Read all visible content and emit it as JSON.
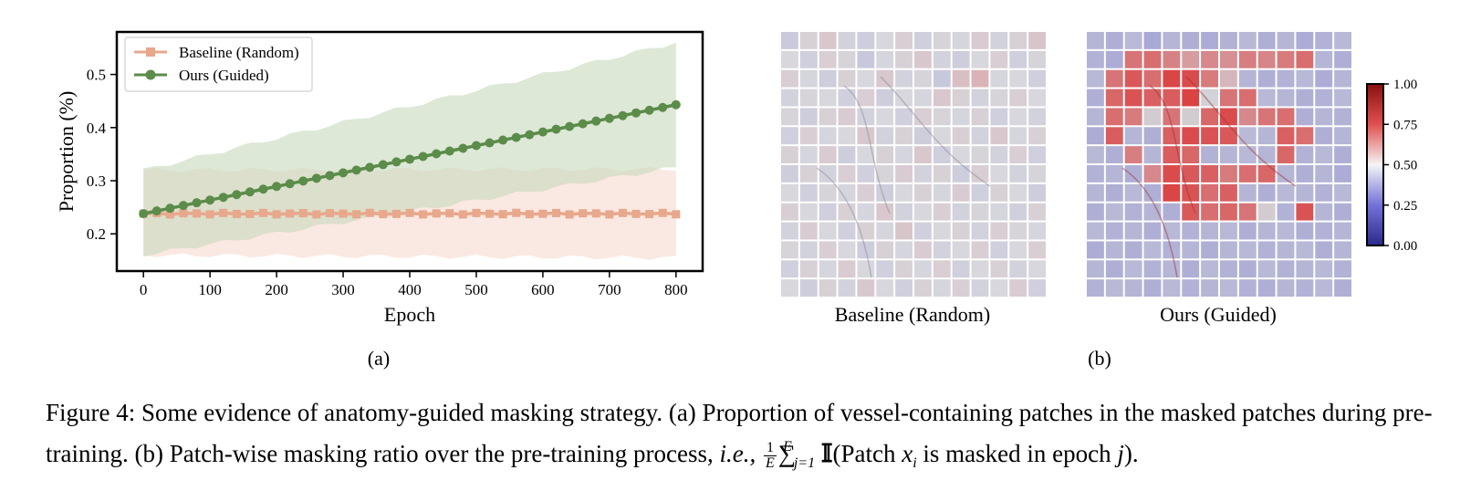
{
  "chart_data": [
    {
      "type": "line",
      "title": "",
      "xlabel": "Epoch",
      "ylabel": "Proportion (%)",
      "xlim": [
        -40,
        840
      ],
      "ylim": [
        0.13,
        0.58
      ],
      "xticks": [
        0,
        100,
        200,
        300,
        400,
        500,
        600,
        700,
        800
      ],
      "yticks": [
        0.2,
        0.3,
        0.4,
        0.5
      ],
      "legend_placement": "top-left",
      "grid": false,
      "panel_label": "(a)",
      "series": [
        {
          "name": "Baseline (Random)",
          "color": "#e8a88c",
          "marker": "square",
          "x_start": 0,
          "x_step": 20,
          "x_end": 800,
          "mean_start": 0.238,
          "mean_end": 0.238,
          "band_lower_start": 0.16,
          "band_lower_end": 0.155,
          "band_upper_start": 0.32,
          "band_upper_end": 0.322
        },
        {
          "name": "Ours (Guided)",
          "color": "#5b8c4a",
          "marker": "circle",
          "x_start": 0,
          "x_step": 20,
          "x_end": 800,
          "mean_start": 0.238,
          "mean_end": 0.443,
          "band_lower_start": 0.16,
          "band_lower_end": 0.325,
          "band_upper_start": 0.32,
          "band_upper_end": 0.56
        }
      ]
    },
    {
      "type": "heatmap",
      "grid_size": 14,
      "colorbar": {
        "min": 0.0,
        "max": 1.0,
        "ticks": [
          "0.00",
          "0.25",
          "0.50",
          "0.75",
          "1.00"
        ]
      },
      "panel_label": "(b)",
      "panels": [
        {
          "label": "Baseline (Random)",
          "values": [
            [
              0.45,
              0.52,
              0.55,
              0.48,
              0.46,
              0.5,
              0.53,
              0.47,
              0.51,
              0.49,
              0.54,
              0.48,
              0.52,
              0.56
            ],
            [
              0.5,
              0.47,
              0.53,
              0.51,
              0.44,
              0.49,
              0.52,
              0.55,
              0.48,
              0.46,
              0.5,
              0.53,
              0.47,
              0.51
            ],
            [
              0.53,
              0.49,
              0.46,
              0.52,
              0.5,
              0.55,
              0.48,
              0.51,
              0.44,
              0.58,
              0.62,
              0.49,
              0.5,
              0.47
            ],
            [
              0.48,
              0.51,
              0.5,
              0.47,
              0.53,
              0.46,
              0.5,
              0.49,
              0.55,
              0.52,
              0.48,
              0.51,
              0.53,
              0.5
            ],
            [
              0.51,
              0.46,
              0.52,
              0.54,
              0.48,
              0.5,
              0.47,
              0.53,
              0.51,
              0.49,
              0.52,
              0.47,
              0.5,
              0.48
            ],
            [
              0.47,
              0.53,
              0.49,
              0.5,
              0.55,
              0.48,
              0.52,
              0.46,
              0.5,
              0.53,
              0.48,
              0.55,
              0.49,
              0.52
            ],
            [
              0.52,
              0.49,
              0.54,
              0.46,
              0.5,
              0.52,
              0.49,
              0.55,
              0.47,
              0.5,
              0.51,
              0.48,
              0.53,
              0.47
            ],
            [
              0.46,
              0.52,
              0.48,
              0.53,
              0.47,
              0.51,
              0.54,
              0.48,
              0.52,
              0.46,
              0.53,
              0.5,
              0.48,
              0.51
            ],
            [
              0.5,
              0.47,
              0.51,
              0.49,
              0.53,
              0.46,
              0.5,
              0.52,
              0.49,
              0.54,
              0.47,
              0.52,
              0.5,
              0.46
            ],
            [
              0.53,
              0.5,
              0.47,
              0.52,
              0.49,
              0.55,
              0.48,
              0.5,
              0.53,
              0.48,
              0.51,
              0.49,
              0.47,
              0.52
            ],
            [
              0.48,
              0.54,
              0.5,
              0.47,
              0.52,
              0.49,
              0.56,
              0.47,
              0.5,
              0.52,
              0.48,
              0.53,
              0.51,
              0.49
            ],
            [
              0.51,
              0.48,
              0.53,
              0.5,
              0.46,
              0.52,
              0.49,
              0.54,
              0.48,
              0.5,
              0.53,
              0.47,
              0.5,
              0.53
            ],
            [
              0.47,
              0.52,
              0.49,
              0.54,
              0.5,
              0.47,
              0.52,
              0.49,
              0.53,
              0.47,
              0.5,
              0.52,
              0.48,
              0.5
            ],
            [
              0.5,
              0.46,
              0.52,
              0.48,
              0.55,
              0.5,
              0.47,
              0.52,
              0.49,
              0.53,
              0.48,
              0.5,
              0.54,
              0.47
            ]
          ]
        },
        {
          "label": "Ours (Guided)",
          "values": [
            [
              0.4,
              0.38,
              0.42,
              0.36,
              0.4,
              0.38,
              0.37,
              0.39,
              0.41,
              0.38,
              0.4,
              0.37,
              0.39,
              0.41
            ],
            [
              0.39,
              0.37,
              0.78,
              0.8,
              0.74,
              0.66,
              0.72,
              0.7,
              0.75,
              0.73,
              0.76,
              0.8,
              0.4,
              0.38
            ],
            [
              0.41,
              0.78,
              0.86,
              0.8,
              0.92,
              0.9,
              0.76,
              0.58,
              0.4,
              0.38,
              0.39,
              0.41,
              0.37,
              0.4
            ],
            [
              0.38,
              0.82,
              0.88,
              0.84,
              0.85,
              0.93,
              0.5,
              0.78,
              0.8,
              0.41,
              0.4,
              0.38,
              0.39,
              0.41
            ],
            [
              0.4,
              0.8,
              0.76,
              0.52,
              0.78,
              0.52,
              0.82,
              0.9,
              0.72,
              0.78,
              0.8,
              0.38,
              0.4,
              0.39
            ],
            [
              0.37,
              0.85,
              0.4,
              0.38,
              0.84,
              0.9,
              0.88,
              0.86,
              0.42,
              0.4,
              0.84,
              0.8,
              0.38,
              0.4
            ],
            [
              0.41,
              0.38,
              0.75,
              0.4,
              0.85,
              0.82,
              0.39,
              0.4,
              0.41,
              0.4,
              0.82,
              0.39,
              0.41,
              0.38
            ],
            [
              0.39,
              0.4,
              0.38,
              0.72,
              0.9,
              0.86,
              0.84,
              0.76,
              0.8,
              0.82,
              0.4,
              0.38,
              0.4,
              0.37
            ],
            [
              0.4,
              0.38,
              0.41,
              0.38,
              0.92,
              0.88,
              0.8,
              0.84,
              0.4,
              0.38,
              0.41,
              0.4,
              0.39,
              0.41
            ],
            [
              0.38,
              0.41,
              0.39,
              0.4,
              0.38,
              0.86,
              0.8,
              0.82,
              0.78,
              0.52,
              0.39,
              0.88,
              0.4,
              0.38
            ],
            [
              0.41,
              0.39,
              0.4,
              0.38,
              0.41,
              0.39,
              0.4,
              0.41,
              0.38,
              0.4,
              0.41,
              0.38,
              0.39,
              0.4
            ],
            [
              0.37,
              0.4,
              0.38,
              0.41,
              0.39,
              0.4,
              0.38,
              0.4,
              0.41,
              0.39,
              0.4,
              0.41,
              0.38,
              0.4
            ],
            [
              0.4,
              0.38,
              0.41,
              0.39,
              0.4,
              0.38,
              0.41,
              0.39,
              0.38,
              0.41,
              0.39,
              0.4,
              0.41,
              0.39
            ],
            [
              0.39,
              0.41,
              0.4,
              0.38,
              0.41,
              0.39,
              0.4,
              0.41,
              0.39,
              0.38,
              0.4,
              0.39,
              0.41,
              0.38
            ]
          ]
        }
      ]
    }
  ],
  "caption": {
    "lead": "Figure 4: Some evidence of anatomy-guided masking strategy. (a) Proportion of vessel-containing patches in the masked patches during pre-training. (b) Patch-wise masking ratio over the pre-training process, ",
    "ie": "i.e.,",
    "frac_num": "1",
    "frac_den": "E",
    "sum_symbol": "∑",
    "sum_sup": "E",
    "sum_sub": "j=1",
    "indicator": "𝕀",
    "paren_text_1": "(Patch ",
    "var_x": "x",
    "var_x_sub": "i",
    "paren_text_2": " is masked in epoch ",
    "var_j": "j",
    "tail": ")."
  }
}
